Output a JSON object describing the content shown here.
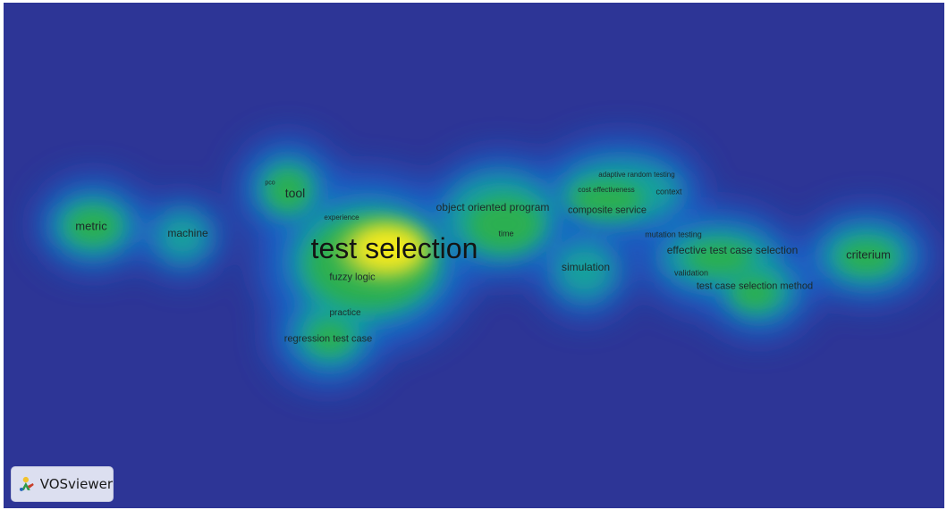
{
  "app": {
    "name": "VOSviewer"
  },
  "view": {
    "type": "density-visualization",
    "background_color": "#2d3596",
    "high_density_color": "#f2ea1a"
  },
  "terms": [
    {
      "label": "metric"
    },
    {
      "label": "machine"
    },
    {
      "label": "pco"
    },
    {
      "label": "tool"
    },
    {
      "label": "experience"
    },
    {
      "label": "test selection"
    },
    {
      "label": "fuzzy logic"
    },
    {
      "label": "practice"
    },
    {
      "label": "regression test case"
    },
    {
      "label": "object oriented program"
    },
    {
      "label": "time"
    },
    {
      "label": "adaptive random testing"
    },
    {
      "label": "cost effectiveness"
    },
    {
      "label": "context"
    },
    {
      "label": "composite service"
    },
    {
      "label": "mutation testing"
    },
    {
      "label": "effective test case selection"
    },
    {
      "label": "simulation"
    },
    {
      "label": "validation"
    },
    {
      "label": "test case selection method"
    },
    {
      "label": "criterium"
    }
  ]
}
